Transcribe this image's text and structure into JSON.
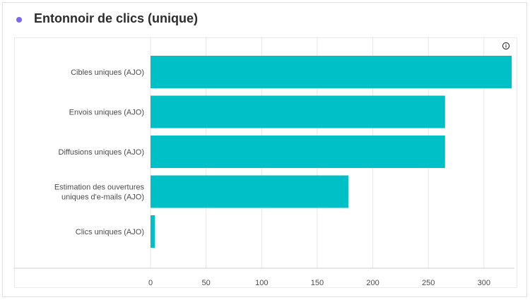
{
  "header": {
    "title": "Entonnoir de clics (unique)",
    "dot_color": "#7b68ee"
  },
  "info_icon": "info-icon",
  "chart_data": {
    "type": "bar",
    "orientation": "horizontal",
    "title": "Entonnoir de clics (unique)",
    "categories": [
      [
        "Cibles uniques (AJO)"
      ],
      [
        "Envois uniques (AJO)"
      ],
      [
        "Diffusions uniques (AJO)"
      ],
      [
        "Estimation des ouvertures",
        "uniques d'e-mails (AJO)"
      ],
      [
        "Clics uniques (AJO)"
      ]
    ],
    "values": [
      325,
      265,
      265,
      178,
      4
    ],
    "xlim": [
      0,
      330
    ],
    "xticks": [
      0,
      50,
      100,
      150,
      200,
      250,
      300
    ],
    "bar_color": "#00c0c7",
    "grid": true,
    "legend": "none"
  }
}
